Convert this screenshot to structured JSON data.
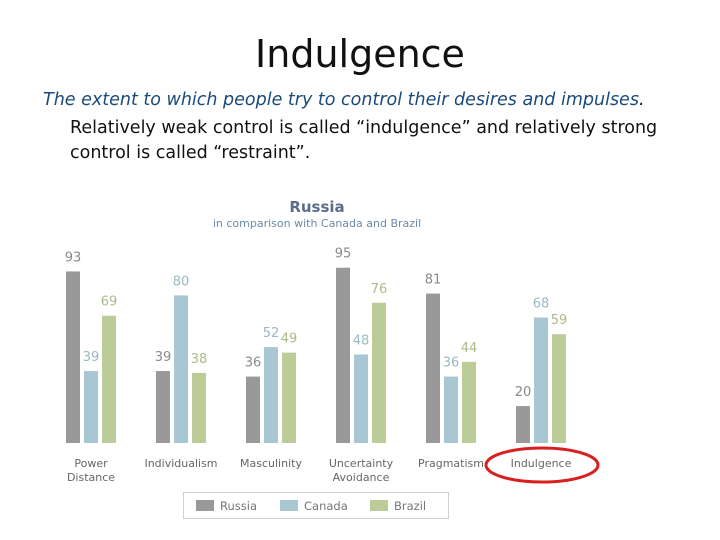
{
  "slide": {
    "title": "Indulgence",
    "subtitle": "The extent to which people try to control their desires and impulses",
    "subtitle_end": ".",
    "body_lines": [
      "Relatively weak control is called “indulgence” and relatively strong",
      "control is called “restraint”."
    ]
  },
  "chart_data": {
    "type": "bar",
    "title": "Russia",
    "subtitle": "in comparison with Canada and Brazil",
    "categories": [
      "Power Distance",
      "Individualism",
      "Masculinity",
      "Uncertainty Avoidance",
      "Pragmatism",
      "Indulgence"
    ],
    "category_lines": [
      [
        "Power",
        "Distance"
      ],
      [
        "Individualism"
      ],
      [
        "Masculinity"
      ],
      [
        "Uncertainty",
        "Avoidance"
      ],
      [
        "Pragmatism"
      ],
      [
        "Indulgence"
      ]
    ],
    "series": [
      {
        "name": "Russia",
        "color": "#999999",
        "values": [
          93,
          39,
          36,
          95,
          81,
          20
        ]
      },
      {
        "name": "Canada",
        "color": "#a9c7d3",
        "values": [
          39,
          80,
          52,
          48,
          36,
          68
        ]
      },
      {
        "name": "Brazil",
        "color": "#bccc98",
        "values": [
          69,
          38,
          49,
          76,
          44,
          59
        ]
      }
    ],
    "ylim": [
      0,
      100
    ],
    "grid": false,
    "legend_position": "bottom",
    "highlighted_category": "Indulgence",
    "highlight_color": "#d92020"
  }
}
